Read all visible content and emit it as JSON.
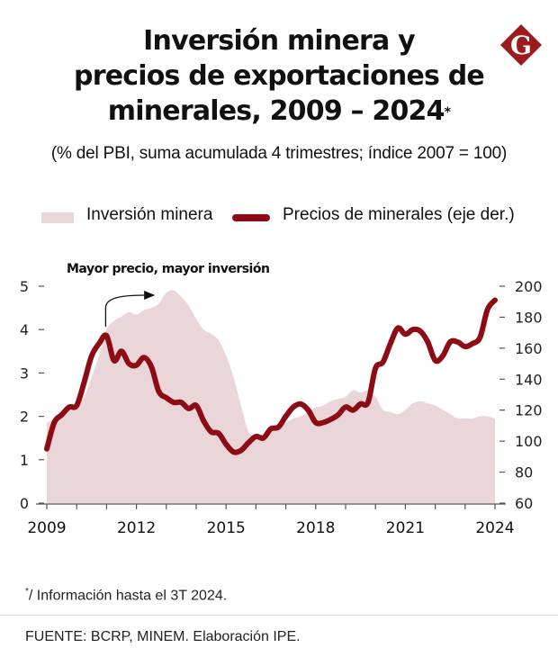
{
  "header": {
    "title_lines": [
      "Inversión minera y",
      "precios de exportaciones de",
      "minerales, 2009 – 2024"
    ],
    "title_mark": "*",
    "subtitle": "(% del PBI, suma acumulada 4 trimestres; índice 2007 = 100)",
    "logo_letter": "G"
  },
  "legend": {
    "area_label": "Inversión minera",
    "line_label": "Precios de minerales (eje der.)"
  },
  "annotation": "Mayor precio, mayor inversión",
  "footer": {
    "note_mark": "*",
    "note": "/ Información hasta el 3T 2024.",
    "source": "FUENTE: BCRP, MINEM. Elaboración IPE."
  },
  "colors": {
    "area": "#ead5d8",
    "line": "#8c0b14",
    "axis": "#555555",
    "logo": "#9b1b1f"
  },
  "chart_data": {
    "type": "area+line",
    "title": "Inversión minera y precios de exportaciones de minerales, 2009 – 2024*",
    "subtitle": "(% del PBI, suma acumulada 4 trimestres; índice 2007 = 100)",
    "xlim": [
      2009,
      2024
    ],
    "x_ticks": [
      2009,
      2010,
      2011,
      2012,
      2013,
      2014,
      2015,
      2016,
      2017,
      2018,
      2019,
      2020,
      2021,
      2022,
      2023,
      2024
    ],
    "x_tick_labels": [
      "2009",
      "2012",
      "2015",
      "2018",
      "2021",
      "2024"
    ],
    "x_tick_label_values": [
      2009,
      2012,
      2015,
      2018,
      2021,
      2024
    ],
    "y_left": {
      "label": "% del PBI",
      "lim": [
        0,
        5
      ],
      "ticks": [
        0,
        1,
        2,
        3,
        4,
        5
      ]
    },
    "y_right": {
      "label": "índice 2007 = 100",
      "lim": [
        60,
        200
      ],
      "ticks": [
        60,
        80,
        100,
        120,
        140,
        160,
        180,
        200
      ]
    },
    "legend_position": "top",
    "grid": false,
    "x": [
      2009.0,
      2009.25,
      2009.5,
      2009.75,
      2010.0,
      2010.25,
      2010.5,
      2010.75,
      2011.0,
      2011.25,
      2011.5,
      2011.75,
      2012.0,
      2012.25,
      2012.5,
      2012.75,
      2013.0,
      2013.25,
      2013.5,
      2013.75,
      2014.0,
      2014.25,
      2014.5,
      2014.75,
      2015.0,
      2015.25,
      2015.5,
      2015.75,
      2016.0,
      2016.25,
      2016.5,
      2016.75,
      2017.0,
      2017.25,
      2017.5,
      2017.75,
      2018.0,
      2018.25,
      2018.5,
      2018.75,
      2019.0,
      2019.25,
      2019.5,
      2019.75,
      2020.0,
      2020.25,
      2020.5,
      2020.75,
      2021.0,
      2021.25,
      2021.5,
      2021.75,
      2022.0,
      2022.25,
      2022.5,
      2022.75,
      2023.0,
      2023.25,
      2023.5,
      2023.75,
      2024.0
    ],
    "series": [
      {
        "name": "Inversión minera",
        "type": "area",
        "axis": "left",
        "values": [
          1.85,
          1.95,
          2.05,
          2.15,
          2.25,
          2.45,
          2.9,
          3.4,
          4.0,
          4.2,
          4.3,
          4.4,
          4.35,
          4.45,
          4.5,
          4.6,
          4.85,
          4.9,
          4.75,
          4.55,
          4.25,
          4.0,
          3.9,
          3.75,
          3.4,
          2.9,
          2.25,
          1.65,
          1.55,
          1.6,
          1.7,
          1.8,
          1.85,
          1.95,
          2.0,
          2.1,
          2.2,
          2.25,
          2.35,
          2.4,
          2.45,
          2.6,
          2.55,
          2.6,
          2.45,
          2.15,
          2.1,
          2.05,
          2.15,
          2.3,
          2.35,
          2.3,
          2.25,
          2.15,
          2.05,
          1.95,
          1.95,
          1.95,
          2.0,
          2.0,
          1.95
        ]
      },
      {
        "name": "Precios de minerales (eje der.)",
        "type": "line",
        "axis": "right",
        "values": [
          95,
          112,
          117,
          122,
          123,
          138,
          155,
          163,
          168,
          152,
          158,
          150,
          149,
          154,
          148,
          132,
          128,
          125,
          125,
          121,
          123,
          113,
          106,
          105,
          98,
          93,
          94,
          99,
          103,
          102,
          108,
          109,
          116,
          122,
          124,
          120,
          112,
          112,
          114,
          117,
          122,
          120,
          124,
          125,
          147,
          151,
          163,
          173,
          169,
          172,
          171,
          164,
          152,
          155,
          164,
          164,
          161,
          163,
          167,
          185,
          191
        ]
      }
    ],
    "annotations": [
      {
        "text": "Mayor precio, mayor inversión",
        "arrow_from_x": 2011.0,
        "arrow_to_x": 2012.8
      }
    ]
  }
}
